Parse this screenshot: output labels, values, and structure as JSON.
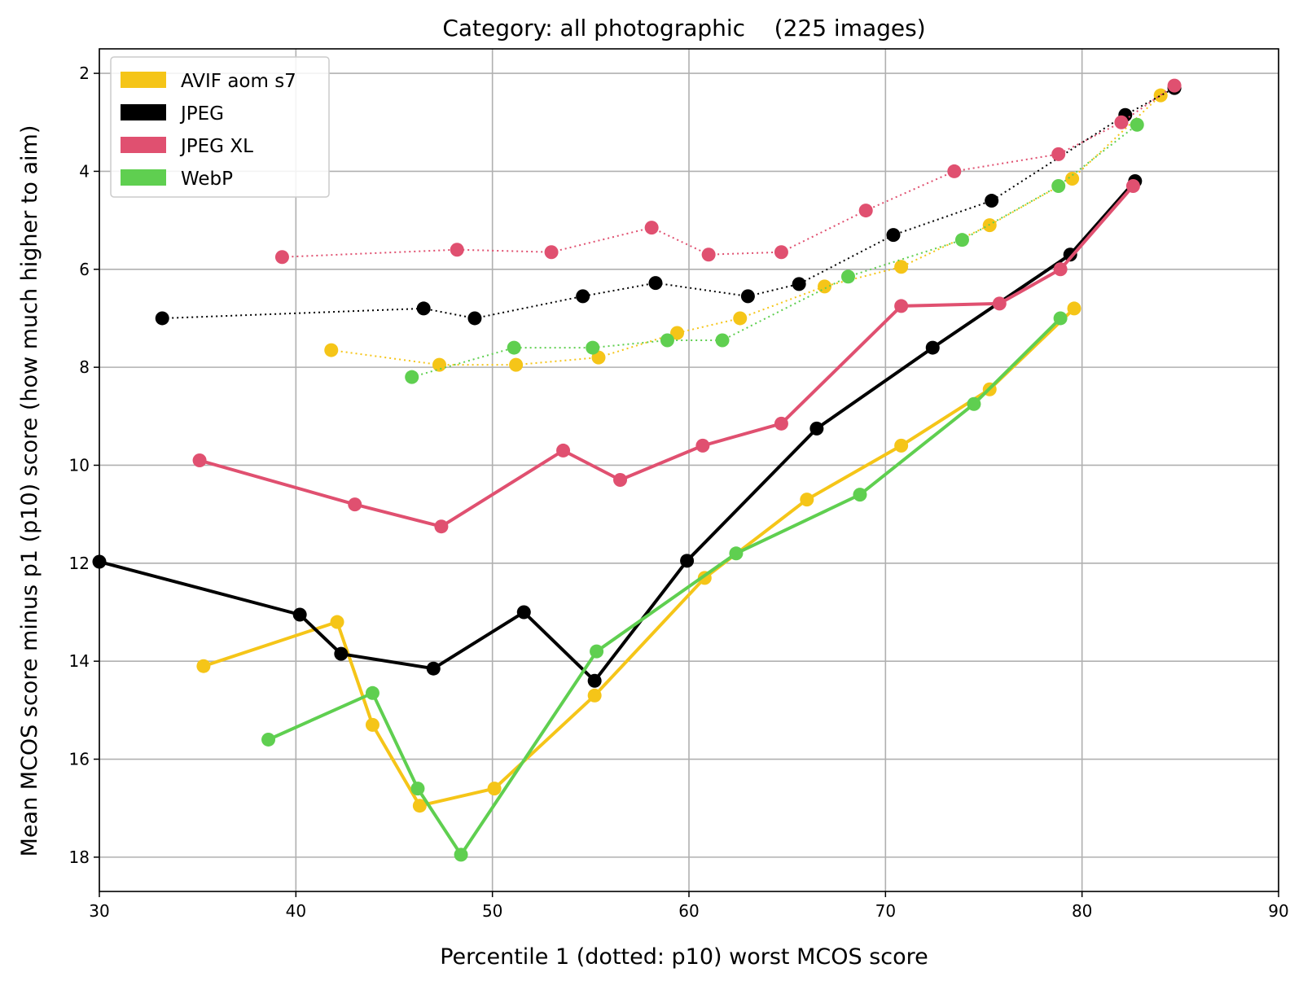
{
  "chart_data": {
    "type": "line",
    "title": "Category: all photographic    (225 images)",
    "xlabel": "Percentile 1 (dotted: p10) worst MCOS score",
    "ylabel": "Mean MCOS score minus p1 (p10) score (how much higher to aim)",
    "xlim": [
      30,
      90
    ],
    "ylim": [
      18.7,
      1.5
    ],
    "y_inverted": true,
    "xticks": [
      30,
      40,
      50,
      60,
      70,
      80,
      90
    ],
    "yticks": [
      2,
      4,
      6,
      8,
      10,
      12,
      14,
      16,
      18
    ],
    "grid": true,
    "legend_position": "top-left",
    "legend": [
      "AVIF aom s7",
      "JPEG",
      "JPEG XL",
      "WebP"
    ],
    "series": [
      {
        "name": "AVIF aom s7",
        "style": "solid",
        "color": "#f5c518",
        "points": [
          [
            35.3,
            14.1
          ],
          [
            42.1,
            13.2
          ],
          [
            43.9,
            15.3
          ],
          [
            46.3,
            16.95
          ],
          [
            50.1,
            16.6
          ],
          [
            55.2,
            14.7
          ],
          [
            60.8,
            12.3
          ],
          [
            66.0,
            10.7
          ],
          [
            70.8,
            9.6
          ],
          [
            75.3,
            8.45
          ],
          [
            79.6,
            6.8
          ]
        ]
      },
      {
        "name": "AVIF aom s7",
        "style": "dotted",
        "color": "#f5c518",
        "points": [
          [
            41.8,
            7.65
          ],
          [
            47.3,
            7.95
          ],
          [
            51.2,
            7.95
          ],
          [
            55.4,
            7.8
          ],
          [
            59.4,
            7.3
          ],
          [
            62.6,
            7.0
          ],
          [
            66.9,
            6.35
          ],
          [
            70.8,
            5.95
          ],
          [
            75.3,
            5.1
          ],
          [
            79.5,
            4.15
          ],
          [
            84.0,
            2.45
          ]
        ]
      },
      {
        "name": "JPEG",
        "style": "solid",
        "color": "#000000",
        "points": [
          [
            30.0,
            11.97
          ],
          [
            40.2,
            13.05
          ],
          [
            42.3,
            13.85
          ],
          [
            47.0,
            14.15
          ],
          [
            51.6,
            13.0
          ],
          [
            55.2,
            14.4
          ],
          [
            59.9,
            11.95
          ],
          [
            66.5,
            9.25
          ],
          [
            72.4,
            7.6
          ],
          [
            79.4,
            5.7
          ],
          [
            82.7,
            4.2
          ]
        ]
      },
      {
        "name": "JPEG",
        "style": "dotted",
        "color": "#000000",
        "points": [
          [
            33.2,
            7.0
          ],
          [
            46.5,
            6.8
          ],
          [
            49.1,
            7.0
          ],
          [
            54.6,
            6.55
          ],
          [
            58.3,
            6.28
          ],
          [
            63.0,
            6.55
          ],
          [
            65.6,
            6.3
          ],
          [
            70.4,
            5.3
          ],
          [
            75.4,
            4.6
          ],
          [
            82.2,
            2.85
          ],
          [
            84.7,
            2.3
          ]
        ]
      },
      {
        "name": "JPEG XL",
        "style": "solid",
        "color": "#e05070",
        "points": [
          [
            35.1,
            9.9
          ],
          [
            43.0,
            10.8
          ],
          [
            47.4,
            11.25
          ],
          [
            53.6,
            9.7
          ],
          [
            56.5,
            10.3
          ],
          [
            60.7,
            9.6
          ],
          [
            64.7,
            9.15
          ],
          [
            70.8,
            6.75
          ],
          [
            75.8,
            6.7
          ],
          [
            78.9,
            6.0
          ],
          [
            82.6,
            4.3
          ]
        ]
      },
      {
        "name": "JPEG XL",
        "style": "dotted",
        "color": "#e05070",
        "points": [
          [
            39.3,
            5.75
          ],
          [
            48.2,
            5.6
          ],
          [
            53.0,
            5.65
          ],
          [
            58.1,
            5.15
          ],
          [
            61.0,
            5.7
          ],
          [
            64.7,
            5.65
          ],
          [
            69.0,
            4.8
          ],
          [
            73.5,
            4.0
          ],
          [
            78.8,
            3.65
          ],
          [
            82.0,
            3.0
          ],
          [
            84.7,
            2.25
          ]
        ]
      },
      {
        "name": "WebP",
        "style": "solid",
        "color": "#5fcf50",
        "points": [
          [
            38.6,
            15.6
          ],
          [
            43.9,
            14.65
          ],
          [
            46.2,
            16.6
          ],
          [
            48.4,
            17.95
          ],
          [
            55.3,
            13.8
          ],
          [
            62.4,
            11.8
          ],
          [
            68.7,
            10.6
          ],
          [
            74.5,
            8.75
          ],
          [
            78.9,
            7.0
          ]
        ]
      },
      {
        "name": "WebP",
        "style": "dotted",
        "color": "#5fcf50",
        "points": [
          [
            45.9,
            8.2
          ],
          [
            51.1,
            7.6
          ],
          [
            55.1,
            7.6
          ],
          [
            58.9,
            7.45
          ],
          [
            61.7,
            7.45
          ],
          [
            68.1,
            6.15
          ],
          [
            73.9,
            5.4
          ],
          [
            78.8,
            4.3
          ],
          [
            82.8,
            3.05
          ]
        ]
      }
    ],
    "legend_colors": [
      "#f5c518",
      "#000000",
      "#e05070",
      "#5fcf50"
    ]
  }
}
